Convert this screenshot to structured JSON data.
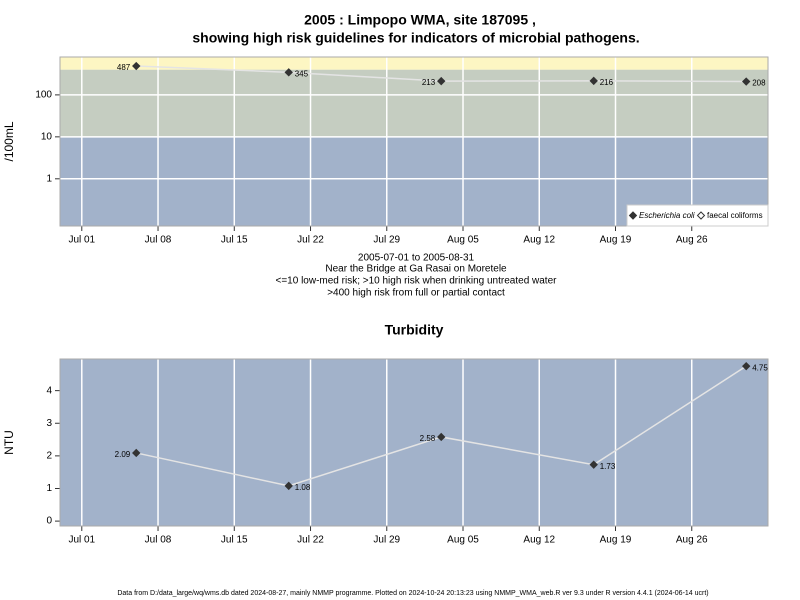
{
  "chart_data": [
    {
      "type": "line",
      "title": [
        "2005 : Limpopo WMA, site 187095 ,",
        "showing high risk guidelines for indicators of microbial pathogens."
      ],
      "ylabel": "/100mL",
      "log_scale": true,
      "x": [
        "2005-07-06",
        "2005-07-20",
        "2005-08-03",
        "2005-08-17",
        "2005-08-31"
      ],
      "xlim": [
        "2005-06-29",
        "2005-09-02"
      ],
      "xticks": [
        {
          "value": "2005-07-01",
          "label": "Jul 01"
        },
        {
          "value": "2005-07-08",
          "label": "Jul 08"
        },
        {
          "value": "2005-07-15",
          "label": "Jul 15"
        },
        {
          "value": "2005-07-22",
          "label": "Jul 22"
        },
        {
          "value": "2005-07-29",
          "label": "Jul 29"
        },
        {
          "value": "2005-08-05",
          "label": "Aug 05"
        },
        {
          "value": "2005-08-12",
          "label": "Aug 12"
        },
        {
          "value": "2005-08-19",
          "label": "Aug 19"
        },
        {
          "value": "2005-08-26",
          "label": "Aug 26"
        }
      ],
      "ylim": [
        0.075,
        800
      ],
      "yticks": [
        1,
        10,
        100
      ],
      "bands": [
        {
          "from": 0.075,
          "to": 10,
          "color": "#a2b2ca"
        },
        {
          "from": 10,
          "to": 400,
          "color": "#c5cdc1"
        },
        {
          "from": 400,
          "to": 800,
          "color": "#fdf6c3"
        }
      ],
      "series": [
        {
          "name": "Escherichia coli",
          "color": "#333333",
          "marker": "filled",
          "values": [
            487,
            345,
            213,
            216,
            208
          ]
        },
        {
          "name": "faecal coliforms",
          "color": "#333333",
          "marker": "open",
          "values": [
            null,
            null,
            null,
            null,
            null
          ]
        }
      ],
      "legend": "lower right",
      "grid": true,
      "annotations": [
        "2005-07-01 to 2005-08-31",
        "Near the Bridge at Ga Rasai on Moretele",
        "<=10 low-med risk; >10 high risk when drinking untreated water",
        ">400 high risk from full or partial contact"
      ]
    },
    {
      "type": "line",
      "title": "Turbidity",
      "ylabel": "NTU",
      "x": [
        "2005-07-06",
        "2005-07-20",
        "2005-08-03",
        "2005-08-17",
        "2005-08-31"
      ],
      "xlim": [
        "2005-06-29",
        "2005-09-02"
      ],
      "xticks": [
        {
          "value": "2005-07-01",
          "label": "Jul 01"
        },
        {
          "value": "2005-07-08",
          "label": "Jul 08"
        },
        {
          "value": "2005-07-15",
          "label": "Jul 15"
        },
        {
          "value": "2005-07-22",
          "label": "Jul 22"
        },
        {
          "value": "2005-07-29",
          "label": "Jul 29"
        },
        {
          "value": "2005-08-05",
          "label": "Aug 05"
        },
        {
          "value": "2005-08-12",
          "label": "Aug 12"
        },
        {
          "value": "2005-08-19",
          "label": "Aug 19"
        },
        {
          "value": "2005-08-26",
          "label": "Aug 26"
        }
      ],
      "ylim": [
        -0.15,
        4.97
      ],
      "yticks": [
        0,
        1,
        2,
        3,
        4
      ],
      "background": "#a2b2ca",
      "grid": true,
      "series": [
        {
          "name": "Turbidity",
          "color": "#333333",
          "marker": "filled",
          "values": [
            2.09,
            1.08,
            2.58,
            1.73,
            4.75
          ]
        }
      ]
    }
  ],
  "footer": "Data from D:/data_large/wq/wms.db dated 2024-08-27, mainly NMMP programme. Plotted on 2024-10-24 20:13:23 using NMMP_WMA_web.R ver 9.3 under R version 4.4.1 (2024-06-14 ucrt)"
}
